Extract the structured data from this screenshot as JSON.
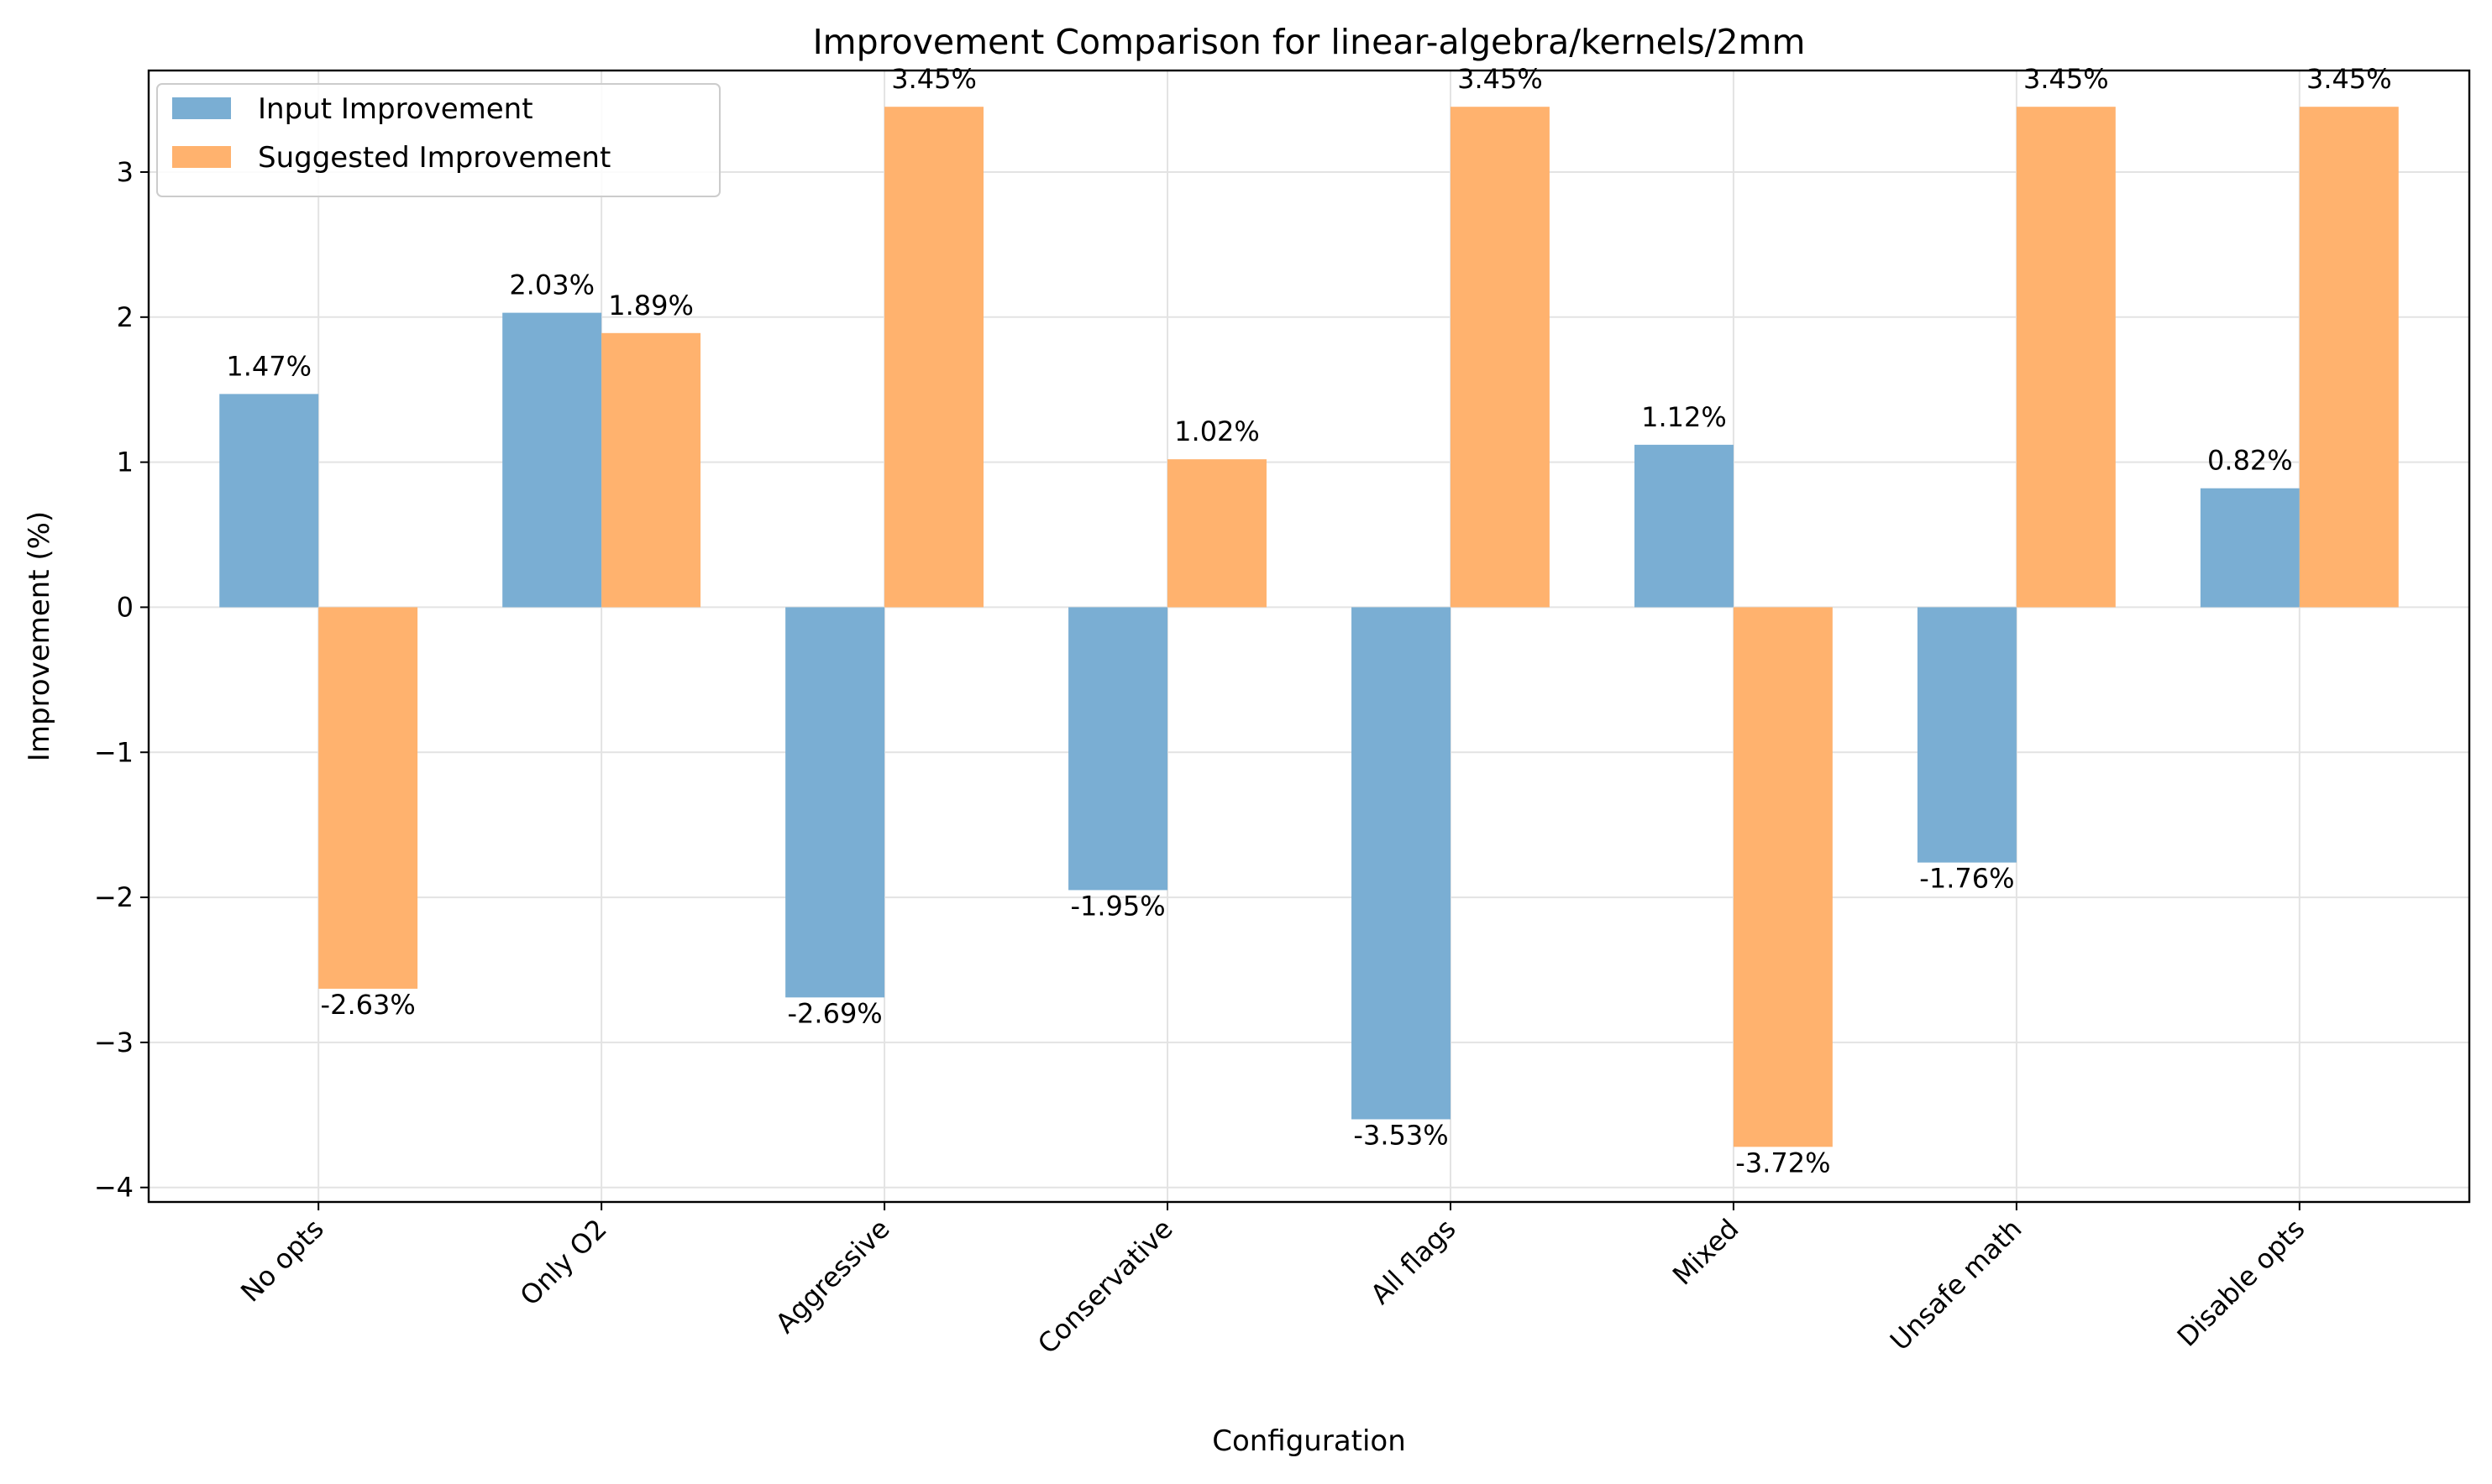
{
  "chart_data": {
    "type": "bar",
    "title": "Improvement Comparison for linear-algebra/kernels/2mm",
    "xlabel": "Configuration",
    "ylabel": "Improvement (%)",
    "categories": [
      "No opts",
      "Only O2",
      "Aggressive",
      "Conservative",
      "All flags",
      "Mixed",
      "Unsafe math",
      "Disable opts"
    ],
    "series": [
      {
        "name": "Input Improvement",
        "color": "#7aaed3",
        "values": [
          1.47,
          2.03,
          -2.69,
          -1.95,
          -3.53,
          1.12,
          -1.76,
          0.82
        ],
        "labels": [
          "1.47%",
          "2.03%",
          "-2.69%",
          "-1.95%",
          "-3.53%",
          "1.12%",
          "-1.76%",
          "0.82%"
        ]
      },
      {
        "name": "Suggested Improvement",
        "color": "#ffb26e",
        "values": [
          -2.63,
          1.89,
          3.45,
          1.02,
          3.45,
          -3.72,
          3.45,
          3.45
        ],
        "labels": [
          "-2.63%",
          "1.89%",
          "3.45%",
          "1.02%",
          "3.45%",
          "-3.72%",
          "3.45%",
          "3.45%"
        ]
      }
    ],
    "ylim": [
      -4.1,
      3.7
    ],
    "yticks": [
      -4,
      -3,
      -2,
      -1,
      0,
      1,
      2,
      3
    ],
    "ytick_labels": [
      "−4",
      "−3",
      "−2",
      "−1",
      "0",
      "1",
      "2",
      "3"
    ],
    "grid": true,
    "legend_position": "top-left"
  }
}
